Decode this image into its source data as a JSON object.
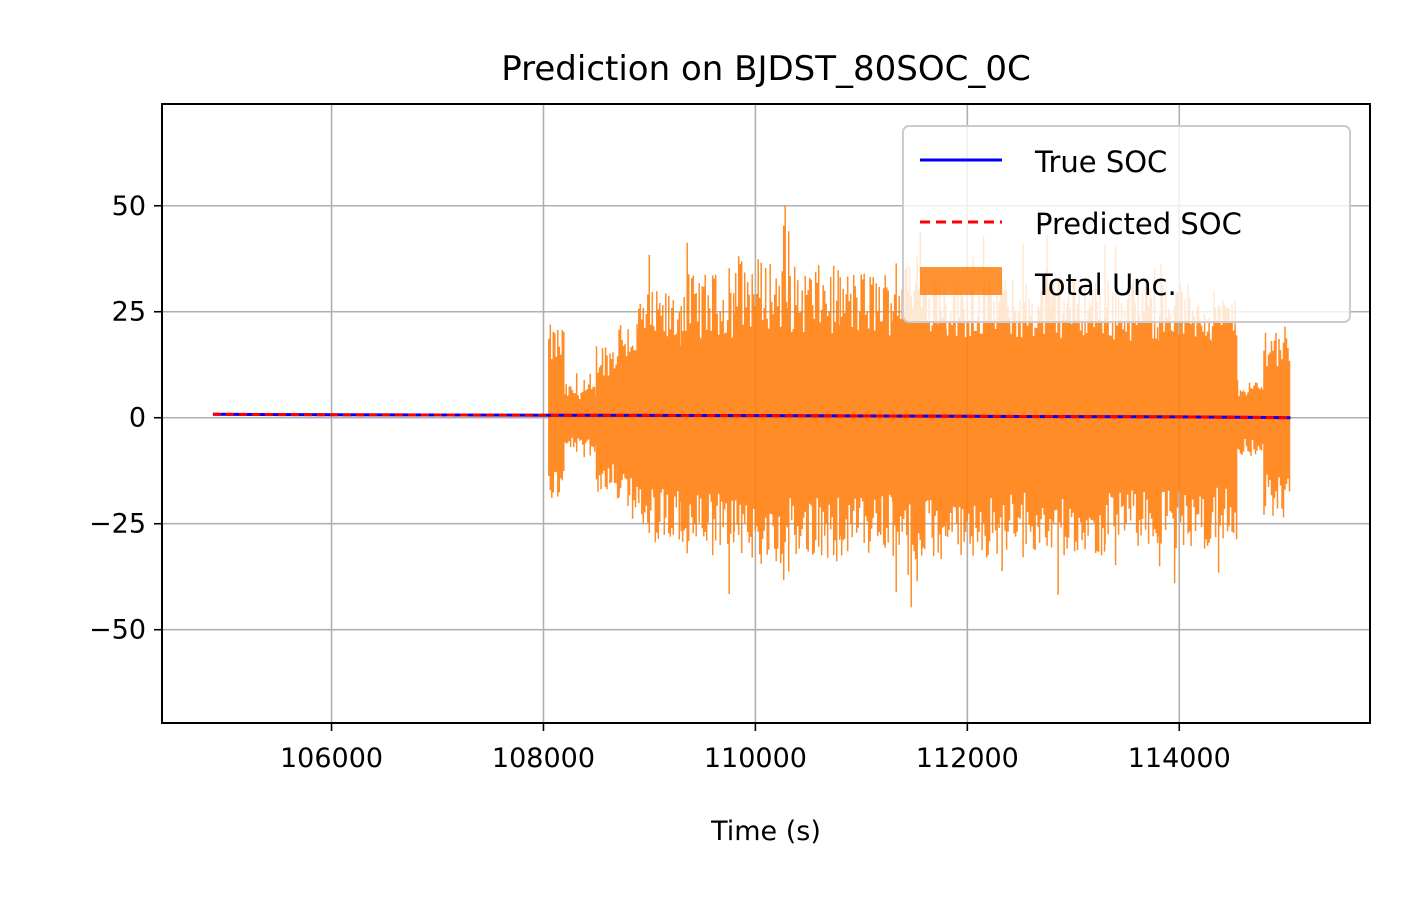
{
  "chart_data": {
    "type": "line",
    "title": "Prediction on BJDST_80SOC_0C",
    "xlabel": "Time (s)",
    "ylabel": "",
    "xlim": [
      104400,
      115800
    ],
    "ylim": [
      -72,
      74
    ],
    "xticks": [
      106000,
      108000,
      110000,
      112000,
      114000
    ],
    "xtick_labels": [
      "106000",
      "108000",
      "110000",
      "112000",
      "114000"
    ],
    "yticks": [
      50,
      25,
      0,
      -25,
      -50
    ],
    "ytick_labels": [
      "50",
      "25",
      "0",
      "−25",
      "−50"
    ],
    "grid": true,
    "legend_position": "top-right",
    "series": [
      {
        "name": "True SOC",
        "style": "solid",
        "color": "#0000ff",
        "x": [
          104880,
          106000,
          108000,
          110000,
          112000,
          114000,
          115050
        ],
        "y": [
          0.8,
          0.7,
          0.6,
          0.5,
          0.35,
          0.2,
          0.0
        ]
      },
      {
        "name": "Predicted SOC",
        "style": "dashed",
        "color": "#ff0000",
        "x": [
          104880,
          106000,
          108000,
          110000,
          112000,
          114000,
          115050
        ],
        "y": [
          0.8,
          0.7,
          0.6,
          0.5,
          0.35,
          0.2,
          0.0
        ]
      }
    ],
    "uncertainty_band": {
      "name": "Total Unc.",
      "color": "#ff7f0e",
      "x_segments": [
        [
          108050,
          108200,
          22,
          -20
        ],
        [
          108200,
          108500,
          8,
          -8
        ],
        [
          108500,
          108700,
          18,
          -18
        ],
        [
          108700,
          108900,
          24,
          -24
        ],
        [
          108900,
          109300,
          30,
          -30
        ],
        [
          109300,
          109800,
          34,
          -32
        ],
        [
          109800,
          110300,
          38,
          -35
        ],
        [
          110300,
          110800,
          36,
          -34
        ],
        [
          110800,
          111300,
          35,
          -33
        ],
        [
          111300,
          111800,
          37,
          -35
        ],
        [
          111800,
          112300,
          34,
          -33
        ],
        [
          112300,
          112800,
          33,
          -32
        ],
        [
          112800,
          113300,
          34,
          -33
        ],
        [
          113300,
          113800,
          33,
          -31
        ],
        [
          113800,
          114300,
          32,
          -31
        ],
        [
          114300,
          114550,
          30,
          -30
        ],
        [
          114550,
          114800,
          9,
          -9
        ],
        [
          114800,
          115050,
          22,
          -24
        ]
      ]
    }
  }
}
